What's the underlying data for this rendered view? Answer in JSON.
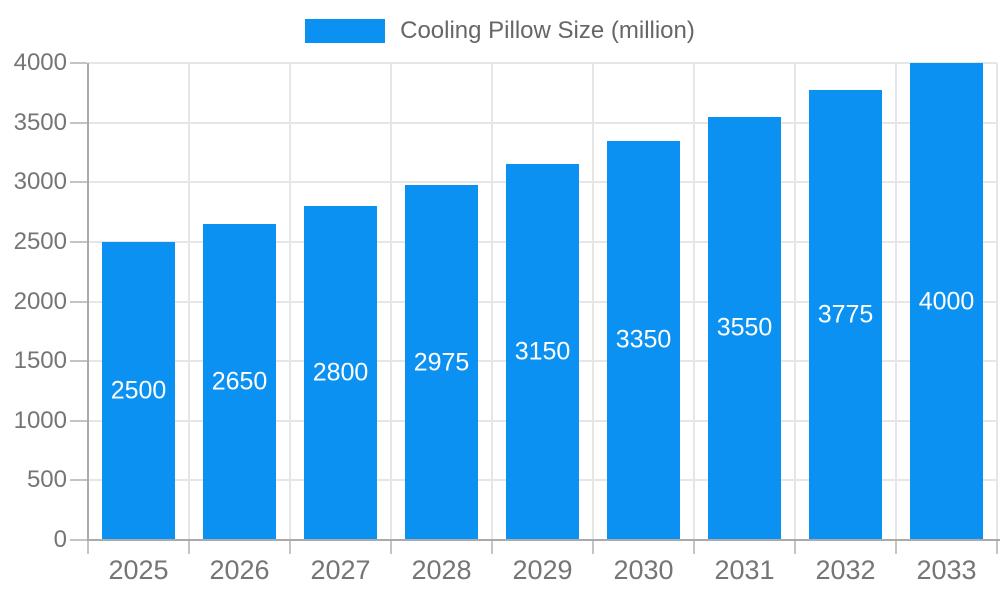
{
  "chart_data": {
    "type": "bar",
    "title": "",
    "xlabel": "",
    "ylabel": "",
    "legend": {
      "position": "top",
      "entries": [
        "Cooling Pillow Size (million)"
      ]
    },
    "categories": [
      "2025",
      "2026",
      "2027",
      "2028",
      "2029",
      "2030",
      "2031",
      "2032",
      "2033"
    ],
    "series": [
      {
        "name": "Cooling Pillow Size (million)",
        "values": [
          2500,
          2650,
          2800,
          2975,
          3150,
          3350,
          3550,
          3775,
          4000
        ]
      }
    ],
    "ylim": [
      0,
      4000
    ],
    "ytick_step": 500,
    "grid": true,
    "bar_value_labels": true
  },
  "colors": {
    "bar": "#0a91f2",
    "bar_label": "#ffffff",
    "grid": "#e6e6e6",
    "axis_line": "#aaaaaa",
    "tick": "#c4c4c4",
    "axis_text": "#757575",
    "legend_text": "#666666",
    "background": "#ffffff"
  }
}
